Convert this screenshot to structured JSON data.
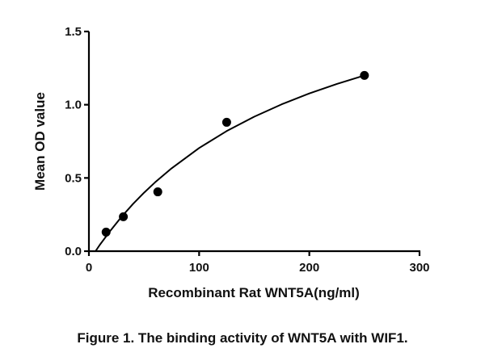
{
  "chart_data": {
    "type": "scatter",
    "title": "",
    "xlabel": "Recombinant Rat WNT5A(ng/ml)",
    "ylabel": "Mean OD value",
    "xlim": [
      0,
      300
    ],
    "ylim": [
      0,
      1.5
    ],
    "xticks": [
      "0",
      "100",
      "200",
      "300"
    ],
    "yticks": [
      "0.0",
      "0.5",
      "1.0",
      "1.5"
    ],
    "grid": false,
    "points": {
      "x": [
        15.6,
        31.25,
        62.5,
        125,
        250
      ],
      "y": [
        0.13,
        0.235,
        0.405,
        0.88,
        1.2
      ]
    },
    "fit_curve": {
      "x": [
        6,
        10,
        20,
        30,
        40,
        50,
        60,
        75,
        100,
        125,
        150,
        175,
        200,
        225,
        250
      ],
      "y": [
        0,
        0.044,
        0.145,
        0.238,
        0.322,
        0.399,
        0.47,
        0.566,
        0.704,
        0.82,
        0.918,
        1.003,
        1.077,
        1.142,
        1.2
      ]
    },
    "color": "#000000"
  },
  "caption": "Figure 1. The binding activity of WNT5A with WIF1."
}
